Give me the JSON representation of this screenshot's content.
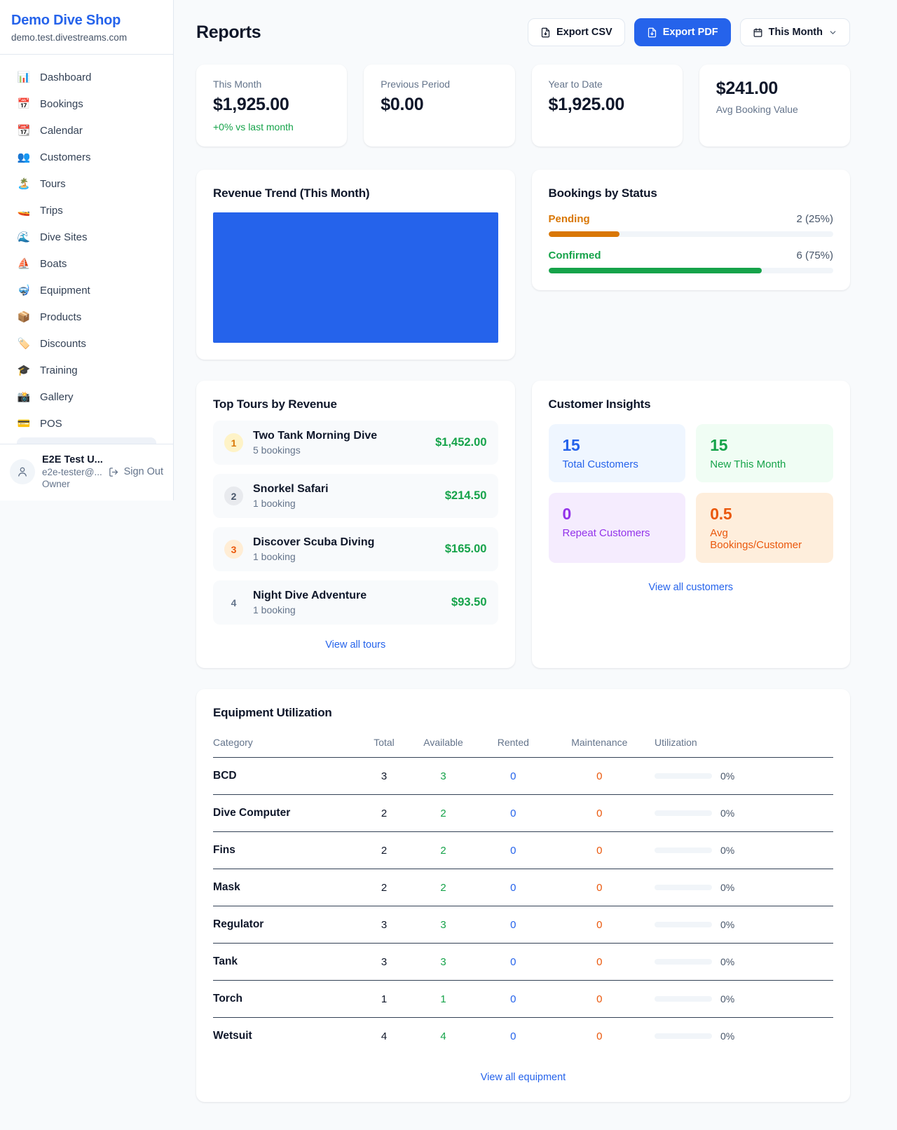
{
  "colors": {
    "primary": "#2563eb",
    "green": "#16a34a",
    "amber": "#d97706",
    "orange": "#ea580c",
    "purple": "#9333ea",
    "page_bg": "#f8fafc"
  },
  "sidebar": {
    "brand": {
      "name": "Demo Dive Shop",
      "domain": "demo.test.divestreams.com"
    },
    "nav": [
      {
        "icon": "📊",
        "label": "Dashboard"
      },
      {
        "icon": "📅",
        "label": "Bookings"
      },
      {
        "icon": "📆",
        "label": "Calendar"
      },
      {
        "icon": "👥",
        "label": "Customers"
      },
      {
        "icon": "🏝️",
        "label": "Tours"
      },
      {
        "icon": "🚤",
        "label": "Trips"
      },
      {
        "icon": "🌊",
        "label": "Dive Sites"
      },
      {
        "icon": "⛵",
        "label": "Boats"
      },
      {
        "icon": "🤿",
        "label": "Equipment"
      },
      {
        "icon": "📦",
        "label": "Products"
      },
      {
        "icon": "🏷️",
        "label": "Discounts"
      },
      {
        "icon": "🎓",
        "label": "Training"
      },
      {
        "icon": "📸",
        "label": "Gallery"
      },
      {
        "icon": "💳",
        "label": "POS"
      }
    ],
    "user": {
      "name": "E2E Test U...",
      "email": "e2e-tester@...",
      "role": "Owner",
      "signout_label": "Sign Out"
    }
  },
  "header": {
    "title": "Reports",
    "export_csv_label": "Export CSV",
    "export_pdf_label": "Export PDF",
    "period_label": "This Month"
  },
  "stats": [
    {
      "label": "This Month",
      "value": "$1,925.00",
      "delta": "+0% vs last month"
    },
    {
      "label": "Previous Period",
      "value": "$0.00"
    },
    {
      "label": "Year to Date",
      "value": "$1,925.00"
    },
    {
      "label": "Avg Booking Value",
      "value": "$241.00"
    }
  ],
  "revenue_trend": {
    "title": "Revenue Trend (This Month)"
  },
  "bookings_status": {
    "title": "Bookings by Status",
    "items": [
      {
        "label": "Pending",
        "count_label": "2 (25%)",
        "count": 2,
        "pct": 25,
        "color": "#d97706"
      },
      {
        "label": "Confirmed",
        "count_label": "6 (75%)",
        "count": 6,
        "pct": 75,
        "color": "#16a34a"
      }
    ]
  },
  "top_tours": {
    "title": "Top Tours by Revenue",
    "items": [
      {
        "rank": "1",
        "name": "Two Tank Morning Dive",
        "bookings": "5 bookings",
        "revenue": "$1,452.00"
      },
      {
        "rank": "2",
        "name": "Snorkel Safari",
        "bookings": "1 booking",
        "revenue": "$214.50"
      },
      {
        "rank": "3",
        "name": "Discover Scuba Diving",
        "bookings": "1 booking",
        "revenue": "$165.00"
      },
      {
        "rank": "4",
        "name": "Night Dive Adventure",
        "bookings": "1 booking",
        "revenue": "$93.50"
      }
    ],
    "link": "View all tours"
  },
  "customer_insights": {
    "title": "Customer Insights",
    "tiles": [
      {
        "value": "15",
        "label": "Total Customers",
        "color": "#2563eb",
        "bg": "#eff6ff"
      },
      {
        "value": "15",
        "label": "New This Month",
        "color": "#16a34a",
        "bg": "#f0fdf4"
      },
      {
        "value": "0",
        "label": "Repeat Customers",
        "color": "#9333ea",
        "bg": "#f5ecfe"
      },
      {
        "value": "0.5",
        "label": "Avg Bookings/Customer",
        "color": "#ea580c",
        "bg": "#feeedc"
      }
    ],
    "link": "View all customers"
  },
  "equipment": {
    "title": "Equipment Utilization",
    "columns": [
      "Category",
      "Total",
      "Available",
      "Rented",
      "Maintenance",
      "Utilization"
    ],
    "rows": [
      {
        "category": "BCD",
        "total": "3",
        "available": "3",
        "rented": "0",
        "maintenance": "0",
        "utilization": "0%"
      },
      {
        "category": "Dive Computer",
        "total": "2",
        "available": "2",
        "rented": "0",
        "maintenance": "0",
        "utilization": "0%"
      },
      {
        "category": "Fins",
        "total": "2",
        "available": "2",
        "rented": "0",
        "maintenance": "0",
        "utilization": "0%"
      },
      {
        "category": "Mask",
        "total": "2",
        "available": "2",
        "rented": "0",
        "maintenance": "0",
        "utilization": "0%"
      },
      {
        "category": "Regulator",
        "total": "3",
        "available": "3",
        "rented": "0",
        "maintenance": "0",
        "utilization": "0%"
      },
      {
        "category": "Tank",
        "total": "3",
        "available": "3",
        "rented": "0",
        "maintenance": "0",
        "utilization": "0%"
      },
      {
        "category": "Torch",
        "total": "1",
        "available": "1",
        "rented": "0",
        "maintenance": "0",
        "utilization": "0%"
      },
      {
        "category": "Wetsuit",
        "total": "4",
        "available": "4",
        "rented": "0",
        "maintenance": "0",
        "utilization": "0%"
      }
    ],
    "link": "View all equipment"
  }
}
